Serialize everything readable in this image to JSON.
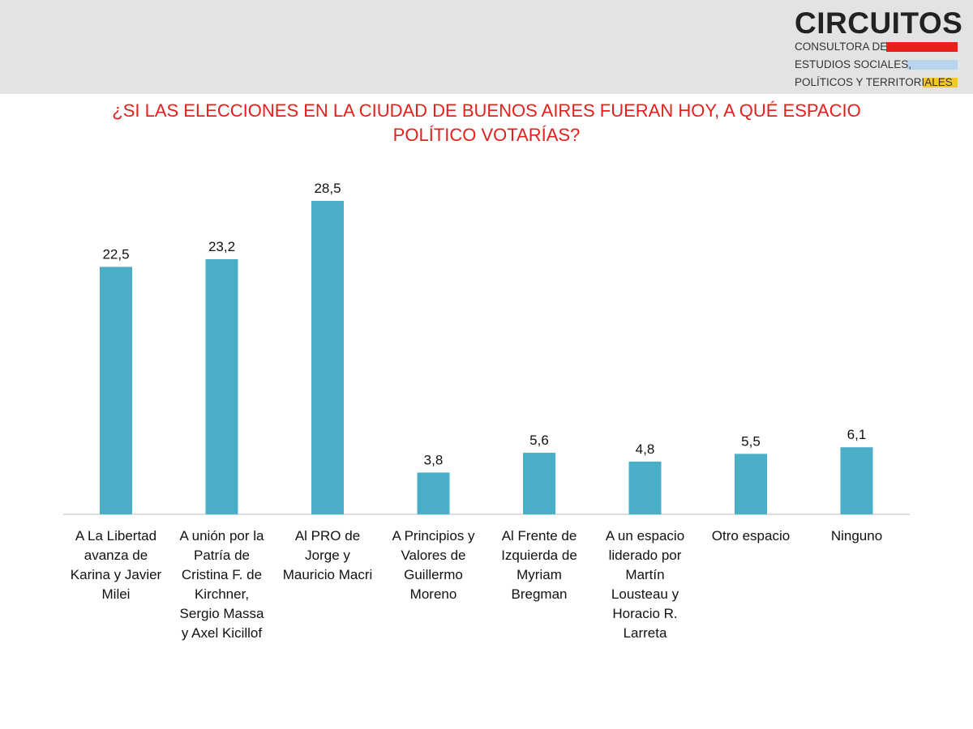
{
  "logo": {
    "name": "CIRCUITOS",
    "lines": [
      "CONSULTORA DE",
      "ESTUDIOS SOCIALES,",
      "POLÍTICOS Y TERRITORIALES"
    ],
    "bar_colors": [
      "#e8201c",
      "#b9d4ee",
      "#f2c62e"
    ]
  },
  "title_lines": [
    "¿SI LAS ELECCIONES EN LA CIUDAD DE BUENOS AIRES FUERAN HOY, A QUÉ ESPACIO",
    "POLÍTICO VOTARÍAS?"
  ],
  "colors": {
    "bar": "#4baec7",
    "title": "#e3201c",
    "axis": "#d4d4d4"
  },
  "chart_data": {
    "type": "bar",
    "title": "¿SI LAS ELECCIONES EN LA CIUDAD DE BUENOS AIRES FUERAN HOY, A QUÉ ESPACIO POLÍTICO VOTARÍAS?",
    "categories": [
      "A La Libertad avanza de Karina y Javier Milei",
      "A unión por la Patría de Cristina F. de Kirchner, Sergio Massa y Axel Kicillof",
      "Al PRO de Jorge y Mauricio Macri",
      "A Principios y Valores de Guillermo Moreno",
      "Al Frente de Izquierda de Myriam Bregman",
      "A un espacio liderado por Martín Lousteau y Horacio R. Larreta",
      "Otro espacio",
      "Ninguno"
    ],
    "category_label_lines": [
      [
        "A La Libertad",
        "avanza de",
        "Karina y Javier",
        "Milei"
      ],
      [
        "A unión por la",
        "Patría de",
        "Cristina F. de",
        "Kirchner,",
        "Sergio Massa",
        "y Axel Kicillof"
      ],
      [
        "Al PRO de",
        "Jorge y",
        "Mauricio Macri"
      ],
      [
        "A Principios y",
        "Valores de",
        "Guillermo",
        "Moreno"
      ],
      [
        "Al Frente de",
        "Izquierda de",
        "Myriam",
        "Bregman"
      ],
      [
        "A un espacio",
        "liderado por",
        "Martín",
        "Lousteau y",
        "Horacio R.",
        "Larreta"
      ],
      [
        "Otro espacio"
      ],
      [
        "Ninguno"
      ]
    ],
    "values": [
      22.5,
      23.2,
      28.5,
      3.8,
      5.6,
      4.8,
      5.5,
      6.1
    ],
    "value_labels": [
      "22,5",
      "23,2",
      "28,5",
      "3,8",
      "5,6",
      "4,8",
      "5,5",
      "6,1"
    ],
    "ylim": [
      0,
      28.5
    ],
    "grid": false,
    "legend": "none"
  }
}
